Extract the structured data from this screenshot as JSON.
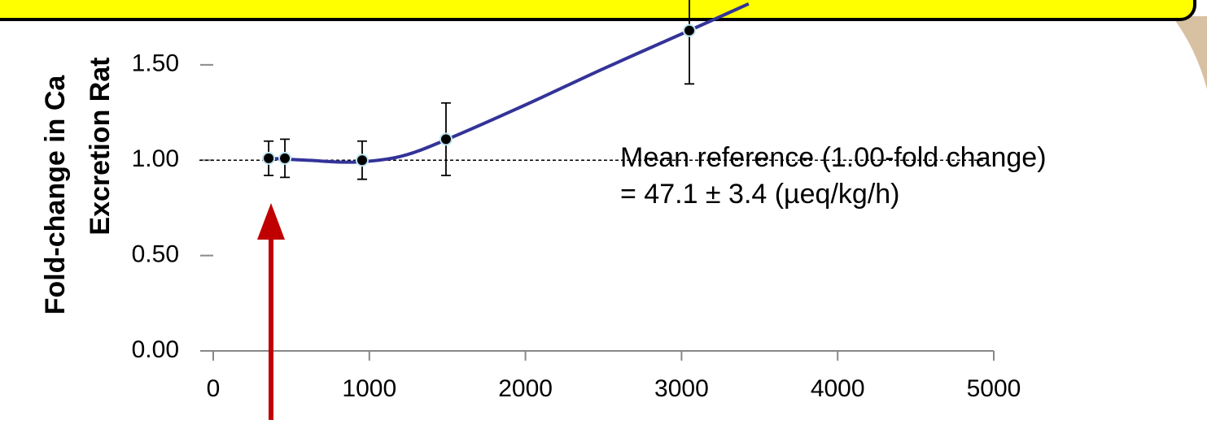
{
  "chart_data": {
    "type": "scatter",
    "y_title_lines": [
      "Fold-change in Ca",
      "Excretion Rat"
    ],
    "annotation_lines": [
      "Mean reference (1.00-fold change)",
      "= 47.1 ± 3.4 (µeq/kg/h)"
    ],
    "reference_line": 1,
    "xlim": [
      0,
      5000
    ],
    "ylim": [
      0,
      1.84
    ],
    "xticks": [
      0,
      1000,
      2000,
      3000,
      4000,
      5000
    ],
    "yticks": [
      {
        "value": 0,
        "label": "0.00"
      },
      {
        "value": 0.5,
        "label": "0.50"
      },
      {
        "value": 1,
        "label": "1.00"
      },
      {
        "value": 1.5,
        "label": "1.50"
      }
    ],
    "grid": false,
    "series": [
      {
        "mode": "markers",
        "color": "#000000",
        "x": [
          355,
          459,
          954,
          1491,
          3050
        ],
        "values": [
          1.01,
          1.01,
          1.0,
          1.11,
          1.68
        ],
        "errors": [
          0.09,
          0.1,
          0.1,
          0.19,
          0.28
        ]
      },
      {
        "mode": "line",
        "color": "#333399",
        "x": [
          355,
          600,
          900,
          1200,
          1500,
          2000,
          2500,
          3050,
          3430
        ],
        "values": [
          1.01,
          1.0,
          0.99,
          1.02,
          1.11,
          1.29,
          1.48,
          1.68,
          1.82
        ]
      }
    ]
  }
}
